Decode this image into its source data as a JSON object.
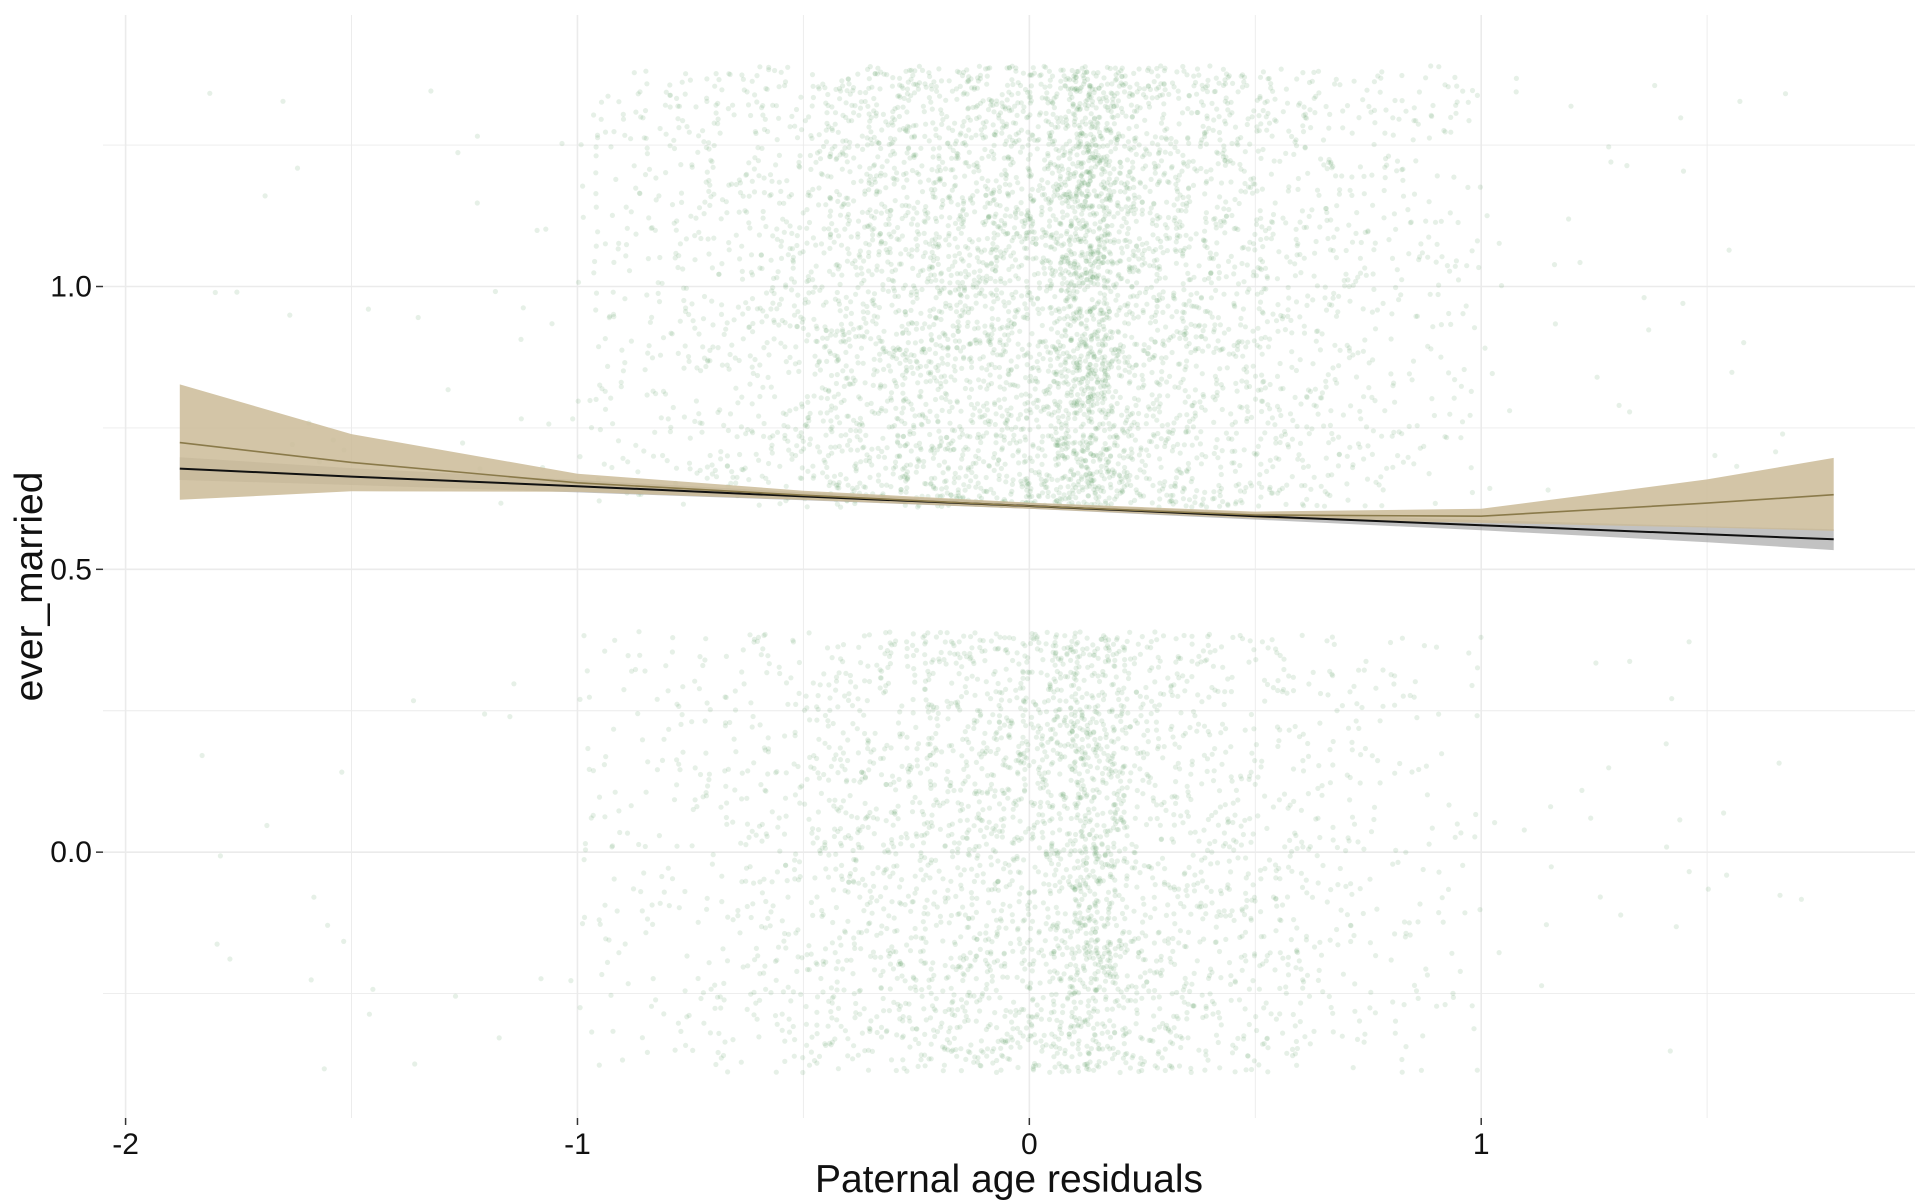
{
  "chart_data": {
    "type": "scatter",
    "title": "",
    "xlabel": "Paternal age residuals",
    "ylabel": "ever_married",
    "xlim": [
      -2.05,
      1.96
    ],
    "ylim": [
      -0.47,
      1.48
    ],
    "x_ticks": [
      {
        "value": -2,
        "label": "-2"
      },
      {
        "value": -1,
        "label": "-1"
      },
      {
        "value": 0,
        "label": "0"
      },
      {
        "value": 1,
        "label": "1"
      }
    ],
    "y_ticks": [
      {
        "value": 0.0,
        "label": "0.0"
      },
      {
        "value": 0.5,
        "label": "0.5"
      },
      {
        "value": 1.0,
        "label": "1.0"
      }
    ],
    "grid": true,
    "legend": "none",
    "points": {
      "description": "jittered binary outcome (0 / 1), thousands of semi-transparent points",
      "outcome_values": [
        0,
        1
      ],
      "jitter_y_range": [
        -0.39,
        0.39
      ],
      "x_range": [
        -1.85,
        1.75
      ],
      "dense_x_range": [
        -1.0,
        1.0
      ],
      "dense_column_x": 0.13,
      "color": "#3a8a45"
    },
    "series": [
      {
        "name": "",
        "kind": "linear fit",
        "x": [
          -1.88,
          -1.5,
          -1.0,
          -0.5,
          0.0,
          0.5,
          1.0,
          1.5,
          1.78
        ],
        "y": [
          0.678,
          0.664,
          0.647,
          0.629,
          0.612,
          0.594,
          0.578,
          0.562,
          0.553
        ],
        "ci_lower": [
          0.658,
          0.649,
          0.636,
          0.622,
          0.607,
          0.588,
          0.569,
          0.548,
          0.534
        ],
        "ci_upper": [
          0.698,
          0.679,
          0.658,
          0.636,
          0.617,
          0.6,
          0.587,
          0.576,
          0.571
        ],
        "color": "#111111",
        "band_color": "#8f8f8f"
      },
      {
        "name": "",
        "kind": "smooth fit",
        "x": [
          -1.88,
          -1.5,
          -1.0,
          -0.5,
          0.0,
          0.5,
          1.0,
          1.5,
          1.78
        ],
        "y": [
          0.724,
          0.689,
          0.653,
          0.631,
          0.612,
          0.596,
          0.594,
          0.617,
          0.632
        ],
        "ci_lower": [
          0.623,
          0.638,
          0.637,
          0.623,
          0.607,
          0.59,
          0.582,
          0.574,
          0.568
        ],
        "ci_upper": [
          0.827,
          0.739,
          0.669,
          0.639,
          0.618,
          0.602,
          0.607,
          0.659,
          0.697
        ],
        "color": "#8a7a4a",
        "band_color": "#cbbb98"
      }
    ]
  }
}
